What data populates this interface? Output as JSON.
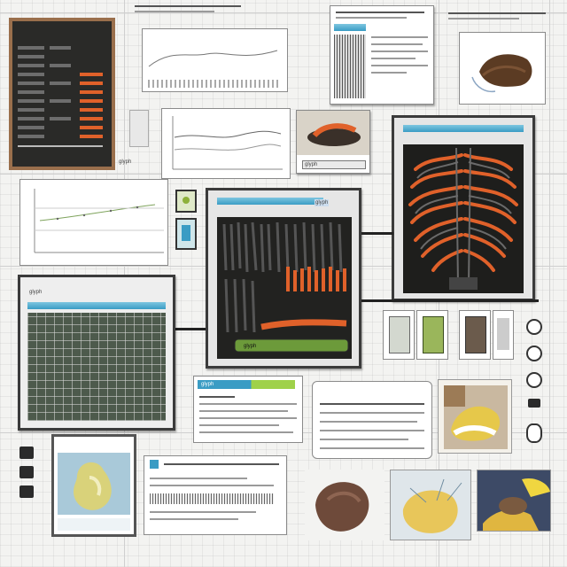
{
  "top_label": "glyph",
  "panel_caption": "glyph",
  "rib_panel_header": "glyph",
  "rib_panel_footer": "glyph",
  "table_panel_header": "glyph",
  "info_panel_title": "glyph",
  "colors": {
    "accent": "#3a9cc4",
    "stripe": "#e0612a",
    "dark_screen": "#1e1e1c",
    "green_bar": "#6c9a3a"
  },
  "icons": [
    "toggle-icon",
    "device-icon",
    "circle-button-icon"
  ]
}
